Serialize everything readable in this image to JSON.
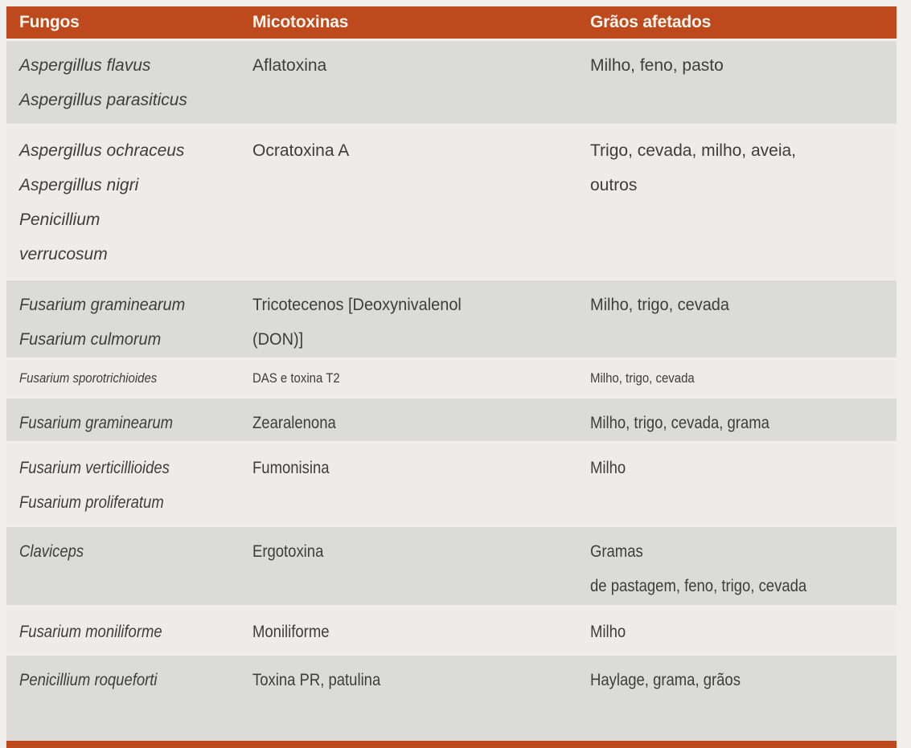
{
  "table": {
    "accent_color": "#be491c",
    "page_bg": "#f0efed",
    "row_dark_bg": "#dbdbd9",
    "row_light_bg": "#edecea",
    "text_color": "#3d3d3d",
    "header_text_color": "#fbf6ef",
    "columns": {
      "fungos": "Fungos",
      "micotoxinas": "Micotoxinas",
      "graos": "Grãos afetados"
    },
    "rows": [
      {
        "fungos": "Aspergillus flavus\nAspergillus parasiticus",
        "micotoxinas": "Aflatoxina",
        "graos": "Milho, feno, pasto"
      },
      {
        "fungos": "Aspergillus ochraceus\nAspergillus nigri\nPenicillium\nverrucosum",
        "micotoxinas": "Ocratoxina A",
        "graos": "Trigo, cevada, milho, aveia,\noutros"
      },
      {
        "fungos": "Fusarium graminearum\nFusarium culmorum",
        "micotoxinas": "Tricotecenos [Deoxynivalenol\n(DON)]",
        "graos": "Milho, trigo, cevada"
      },
      {
        "fungos": "Fusarium sporotrichioides",
        "micotoxinas": "DAS e toxina T2",
        "graos": "Milho, trigo, cevada"
      },
      {
        "fungos": "Fusarium graminearum",
        "micotoxinas": "Zearalenona",
        "graos": "Milho, trigo, cevada, grama"
      },
      {
        "fungos": "Fusarium verticillioides\nFusarium proliferatum",
        "micotoxinas": "Fumonisina",
        "graos": "Milho"
      },
      {
        "fungos": "Claviceps",
        "micotoxinas": "Ergotoxina",
        "graos": "Gramas\nde pastagem, feno, trigo, cevada"
      },
      {
        "fungos": "Fusarium moniliforme",
        "micotoxinas": "Moniliforme",
        "graos": "Milho"
      },
      {
        "fungos": "Penicillium roqueforti",
        "micotoxinas": "Toxina PR, patulina",
        "graos": "Haylage, grama, grãos"
      }
    ]
  }
}
